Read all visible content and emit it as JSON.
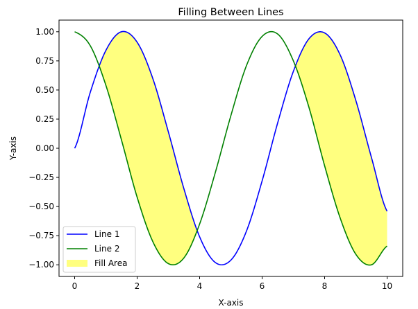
{
  "chart_data": {
    "type": "line",
    "title": "Filling Between Lines",
    "xlabel": "X-axis",
    "ylabel": "Y-axis",
    "xlim": [
      -0.5,
      10.5
    ],
    "ylim": [
      -1.1,
      1.1
    ],
    "x_ticks": [
      0,
      2,
      4,
      6,
      8,
      10
    ],
    "x_tick_labels": [
      "0",
      "2",
      "4",
      "6",
      "8",
      "10"
    ],
    "y_ticks": [
      -1.0,
      -0.75,
      -0.5,
      -0.25,
      0.0,
      0.25,
      0.5,
      0.75,
      1.0
    ],
    "y_tick_labels": [
      "−1.00",
      "−0.75",
      "−0.50",
      "−0.25",
      "0.00",
      "0.25",
      "0.50",
      "0.75",
      "1.00"
    ],
    "grid": false,
    "legend_position": "lower-left",
    "x": [
      0.0,
      0.5,
      1.0,
      1.5,
      2.0,
      2.5,
      3.0,
      3.5,
      4.0,
      4.5,
      5.0,
      5.5,
      6.0,
      6.5,
      7.0,
      7.5,
      8.0,
      8.5,
      9.0,
      9.5,
      10.0
    ],
    "series": [
      {
        "name": "Line 1",
        "color": "#0000ff",
        "values": [
          0.0,
          0.48,
          0.84,
          1.0,
          0.91,
          0.6,
          0.14,
          -0.35,
          -0.76,
          -0.98,
          -0.96,
          -0.71,
          -0.28,
          0.22,
          0.66,
          0.94,
          0.99,
          0.8,
          0.41,
          -0.08,
          -0.54
        ]
      },
      {
        "name": "Line 2",
        "color": "#008000",
        "values": [
          1.0,
          0.88,
          0.54,
          0.07,
          -0.42,
          -0.8,
          -0.99,
          -0.94,
          -0.65,
          -0.21,
          0.28,
          0.71,
          0.96,
          0.98,
          0.75,
          0.35,
          -0.15,
          -0.6,
          -0.91,
          -1.0,
          -0.84
        ]
      }
    ],
    "fill": {
      "name": "Fill Area",
      "color": "#ffff00",
      "opacity": 0.5,
      "condition": "Line 1 > Line 2"
    }
  }
}
